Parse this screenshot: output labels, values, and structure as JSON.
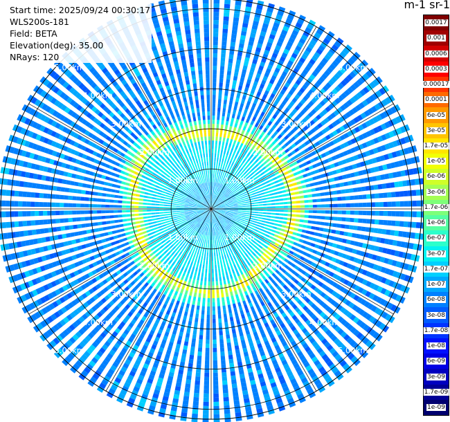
{
  "info": {
    "start_time": "Start time: 2025/09/24 00:30:17",
    "device": "WLS200s-181",
    "field": "Field: BETA",
    "elevation": "Elevation(deg): 35.00",
    "nrays": "NRays: 120"
  },
  "colorbar": {
    "title": "m-1 sr-1",
    "labels": [
      "0.0017",
      "0.001",
      "0.0006",
      "0.0003",
      "0.00017",
      "0.0001",
      "6e-05",
      "3e-05",
      "1.7e-05",
      "1e-05",
      "6e-06",
      "3e-06",
      "1.7e-06",
      "1e-06",
      "6e-07",
      "3e-07",
      "1.7e-07",
      "1e-07",
      "6e-08",
      "3e-08",
      "1.7e-08",
      "1e-08",
      "6e-09",
      "3e-09",
      "1.7e-09",
      "1e-09"
    ],
    "colors": [
      "#7f0000",
      "#a00000",
      "#d20000",
      "#ff0000",
      "#ff3500",
      "#ff6a00",
      "#ff9900",
      "#ffc400",
      "#ffe600",
      "#f2ff05",
      "#cfff28",
      "#a4ff53",
      "#7dff7a",
      "#55ffa2",
      "#2cffcb",
      "#05f2f1",
      "#00d0ff",
      "#00a8ff",
      "#0080ff",
      "#005cff",
      "#0034ff",
      "#0010ff",
      "#0000e4",
      "#0000bf",
      "#000096",
      "#00006f"
    ]
  },
  "chart_data": {
    "type": "heatmap",
    "projection": "polar PPI scan",
    "title": "",
    "rays": 120,
    "elevation_deg": 35.0,
    "field": "BETA",
    "units": "m-1 sr-1",
    "color_scale": "log",
    "range_rings_km": [
      1.0,
      2.0,
      3.0,
      4.0,
      5.0
    ],
    "range_labels": [
      "1.00km",
      "2.00km",
      "3.00km",
      "4.00km",
      "5.00km"
    ],
    "max_range_km": 5.25,
    "typical_background_beta": "6e-08",
    "strong_return_ring": {
      "approx_range_km": "1.9-2.1",
      "peak_beta": "1.7e-05"
    },
    "near_field_beta": "1.7e-07"
  }
}
